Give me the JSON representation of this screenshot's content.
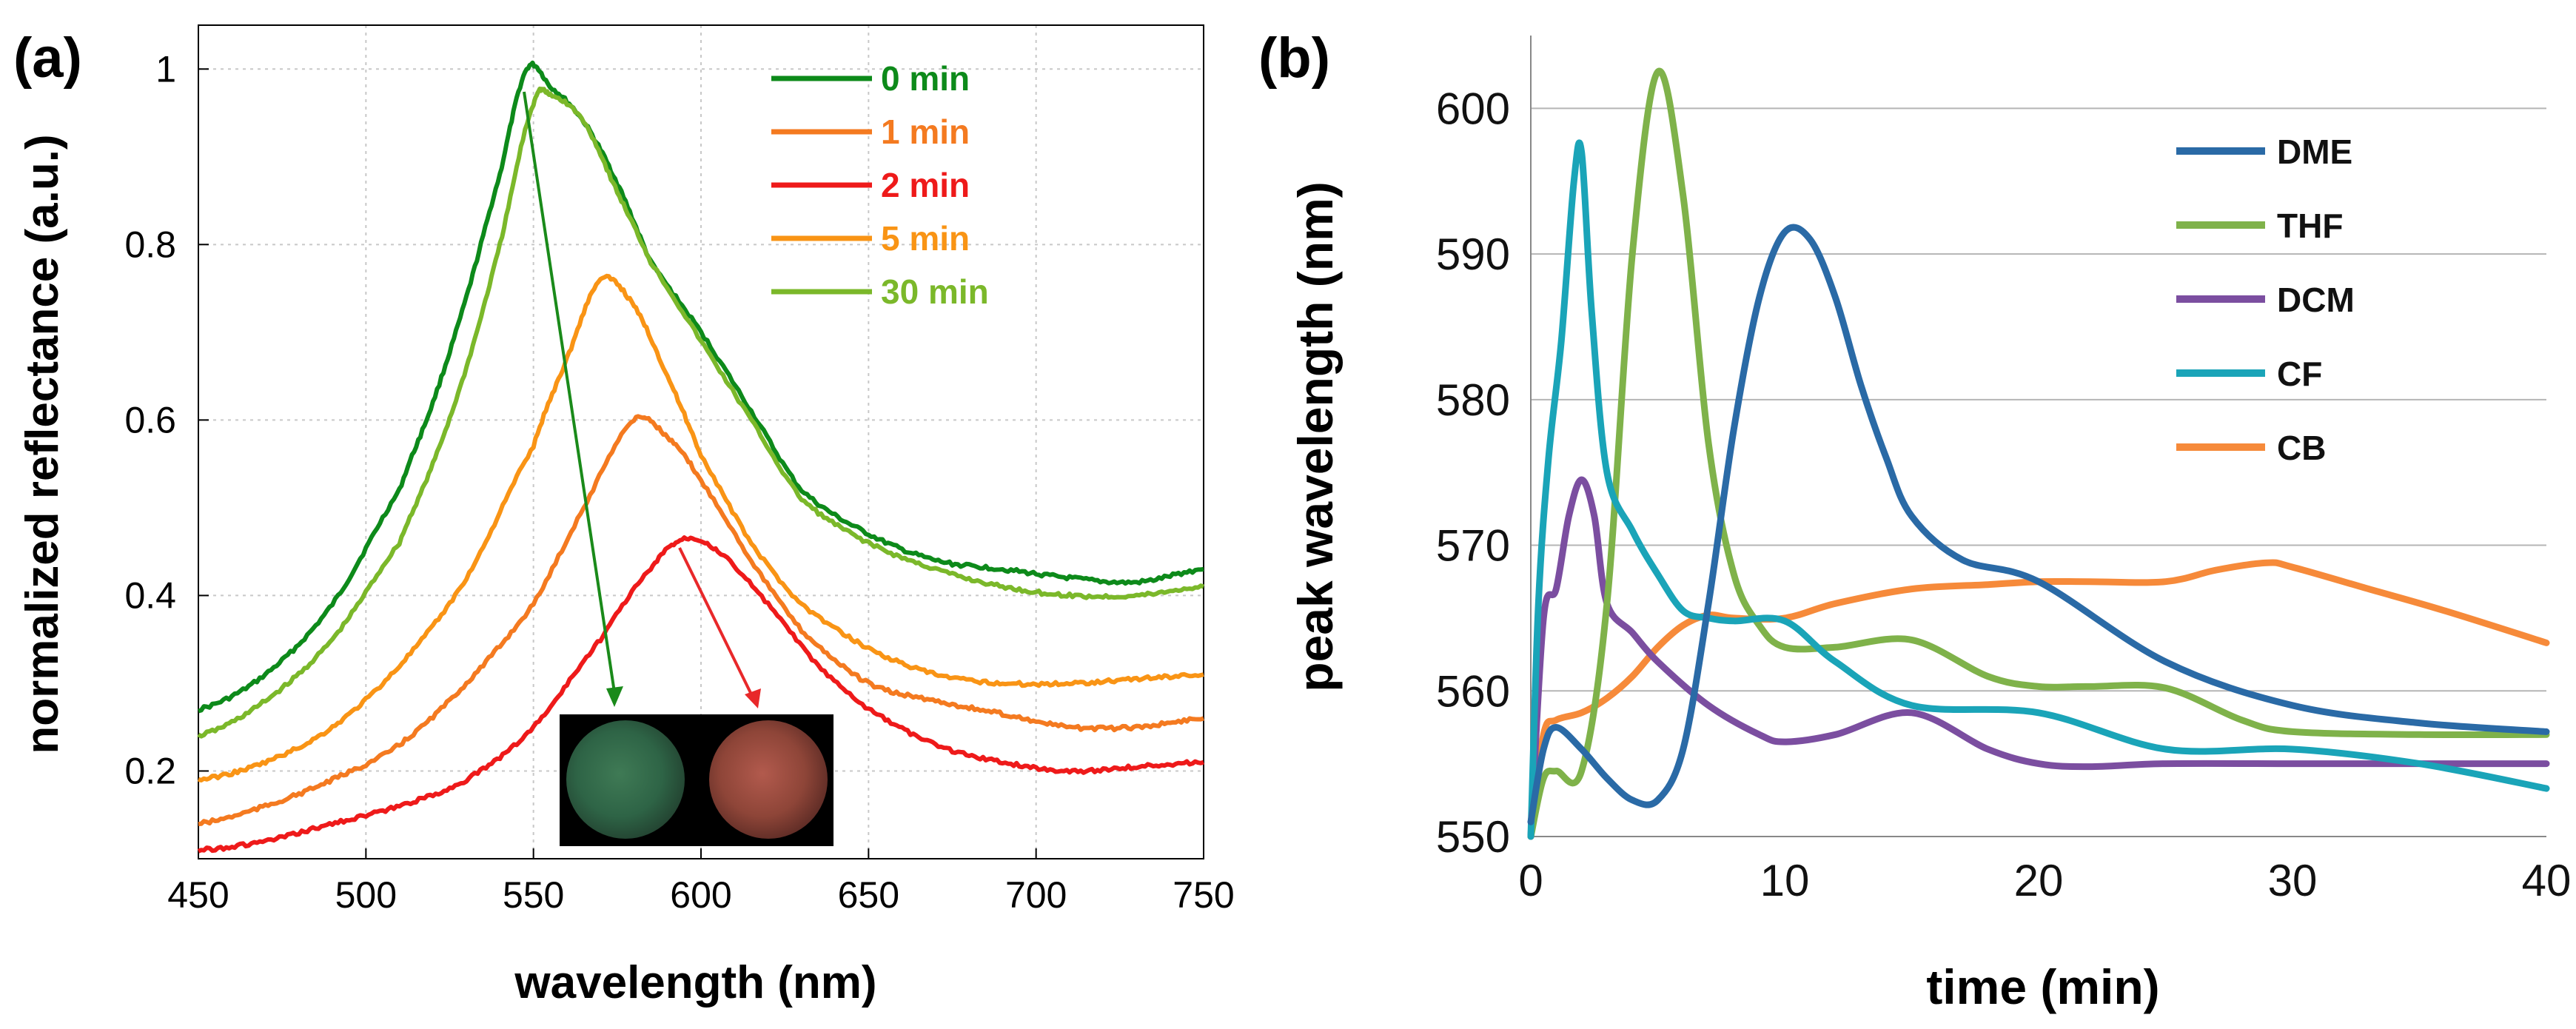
{
  "colors": {
    "0 min": "#0d8a1a",
    "1 min": "#f47a20",
    "2 min": "#ee1a1a",
    "5 min": "#f99415",
    "30 min": "#7bb82a",
    "DME": "#2a6aa6",
    "THF": "#7fb24a",
    "DCM": "#7b4ea0",
    "CF": "#1aa4b8",
    "CB": "#f68a3a"
  },
  "chart_data": [
    {
      "type": "line",
      "panel_label": "(a)",
      "title": "",
      "xlabel": "wavelength (nm)",
      "ylabel": "normalized reflectance (a.u.)",
      "xlim": [
        450,
        750
      ],
      "ylim": [
        0.1,
        1.05
      ],
      "xticks": [
        450,
        500,
        550,
        600,
        650,
        700,
        750
      ],
      "xtick_labels": [
        "450",
        "500",
        "550",
        "600",
        "650",
        "700",
        "750"
      ],
      "yticks": [
        0.2,
        0.4,
        0.6,
        0.8,
        1
      ],
      "ytick_labels": [
        "0.2",
        "0.4",
        "0.6",
        "0.8",
        "1"
      ],
      "grid": true,
      "legend": "top-right",
      "annotations": [
        "arrow from 0 min peak toward green inset photo",
        "arrow from 2 min peak toward red inset photo",
        "inset: photographs of green and red film discs"
      ],
      "series": [
        {
          "name": "0 min",
          "x": [
            450,
            470,
            490,
            510,
            520,
            530,
            540,
            548,
            555,
            565,
            575,
            585,
            600,
            615,
            630,
            650,
            670,
            690,
            710,
            730,
            750
          ],
          "values": [
            0.27,
            0.31,
            0.39,
            0.52,
            0.62,
            0.74,
            0.88,
            1.0,
            0.98,
            0.94,
            0.87,
            0.78,
            0.7,
            0.61,
            0.52,
            0.47,
            0.44,
            0.43,
            0.42,
            0.415,
            0.43
          ]
        },
        {
          "name": "30 min",
          "x": [
            450,
            470,
            490,
            510,
            520,
            530,
            540,
            550,
            555,
            565,
            575,
            585,
            600,
            615,
            630,
            650,
            670,
            690,
            710,
            730,
            750
          ],
          "values": [
            0.24,
            0.28,
            0.35,
            0.46,
            0.55,
            0.66,
            0.8,
            0.96,
            0.97,
            0.94,
            0.86,
            0.78,
            0.69,
            0.6,
            0.51,
            0.46,
            0.43,
            0.41,
            0.4,
            0.4,
            0.41
          ]
        },
        {
          "name": "5 min",
          "x": [
            450,
            470,
            490,
            510,
            530,
            550,
            560,
            570,
            580,
            590,
            600,
            615,
            630,
            650,
            670,
            690,
            710,
            730,
            750
          ],
          "values": [
            0.19,
            0.21,
            0.25,
            0.32,
            0.42,
            0.57,
            0.67,
            0.76,
            0.73,
            0.65,
            0.56,
            0.46,
            0.39,
            0.34,
            0.31,
            0.3,
            0.3,
            0.305,
            0.31
          ]
        },
        {
          "name": "1 min",
          "x": [
            450,
            470,
            490,
            510,
            530,
            550,
            565,
            580,
            590,
            600,
            615,
            630,
            650,
            670,
            690,
            710,
            730,
            750
          ],
          "values": [
            0.14,
            0.16,
            0.19,
            0.23,
            0.3,
            0.39,
            0.5,
            0.6,
            0.58,
            0.53,
            0.44,
            0.36,
            0.3,
            0.28,
            0.265,
            0.25,
            0.25,
            0.26
          ]
        },
        {
          "name": "2 min",
          "x": [
            450,
            470,
            490,
            510,
            530,
            550,
            570,
            585,
            595,
            605,
            620,
            635,
            650,
            670,
            690,
            710,
            730,
            750
          ],
          "values": [
            0.11,
            0.12,
            0.14,
            0.16,
            0.19,
            0.25,
            0.35,
            0.43,
            0.465,
            0.45,
            0.39,
            0.32,
            0.27,
            0.23,
            0.21,
            0.2,
            0.205,
            0.21
          ]
        }
      ]
    },
    {
      "type": "line",
      "panel_label": "(b)",
      "title": "",
      "xlabel": "time (min)",
      "ylabel": "peak wavelength (nm)",
      "xlim": [
        0,
        40
      ],
      "ylim": [
        550,
        605
      ],
      "xticks": [
        0,
        10,
        20,
        30,
        40
      ],
      "xtick_labels": [
        "0",
        "10",
        "20",
        "30",
        "40"
      ],
      "yticks": [
        550,
        560,
        570,
        580,
        590,
        600
      ],
      "ytick_labels": [
        "550",
        "560",
        "570",
        "580",
        "590",
        "600"
      ],
      "grid": true,
      "legend": "top-right",
      "series": [
        {
          "name": "DME",
          "x": [
            0,
            0.5,
            1,
            2,
            3,
            4,
            5,
            6,
            7,
            8,
            9,
            10,
            11,
            12,
            13,
            14,
            15,
            17,
            20,
            25,
            30,
            35,
            40
          ],
          "values": [
            551,
            556,
            557.5,
            556,
            554,
            552.5,
            552.5,
            556,
            566,
            578,
            587,
            591.5,
            591,
            587,
            581,
            576,
            572,
            569,
            567.5,
            562,
            559,
            557.8,
            557.2
          ]
        },
        {
          "name": "THF",
          "x": [
            0,
            0.5,
            1,
            2,
            3,
            4,
            5,
            6,
            7,
            8,
            9,
            10,
            12,
            15,
            18,
            20,
            22,
            25,
            28,
            30,
            35,
            40
          ],
          "values": [
            550,
            554,
            554.5,
            554.5,
            566,
            590,
            602.5,
            594,
            577,
            568,
            564.5,
            563,
            563,
            563.5,
            561,
            560.3,
            560.3,
            560.2,
            558,
            557.2,
            557,
            557
          ]
        },
        {
          "name": "DCM",
          "x": [
            0,
            0.5,
            1,
            1.5,
            2,
            2.5,
            3,
            4,
            5,
            7,
            9,
            10,
            12,
            15,
            18,
            20,
            22,
            25,
            30,
            35,
            40
          ],
          "values": [
            550,
            565,
            567,
            572,
            574.5,
            572,
            566,
            564,
            562,
            559,
            557,
            556.5,
            557,
            558.5,
            556,
            555,
            554.8,
            555,
            555,
            555,
            555
          ]
        },
        {
          "name": "CF",
          "x": [
            0,
            0.3,
            0.7,
            1.2,
            1.7,
            2,
            2.4,
            3,
            4,
            5,
            6,
            7,
            8,
            10,
            12,
            15,
            20,
            25,
            30,
            35,
            40
          ],
          "values": [
            550,
            566,
            576,
            584,
            595,
            597,
            586,
            575,
            571,
            568,
            565.5,
            565,
            564.8,
            564.8,
            562,
            559,
            558.5,
            556,
            556,
            555,
            553.3
          ]
        },
        {
          "name": "CB",
          "x": [
            0,
            0.5,
            1,
            2,
            3,
            4,
            5,
            6,
            7,
            8,
            10,
            12,
            15,
            18,
            20,
            22,
            25,
            27,
            29,
            30,
            33,
            36,
            40
          ],
          "values": [
            550,
            557,
            558,
            558.5,
            559.5,
            561,
            563,
            564.5,
            565.2,
            565,
            565,
            566,
            567,
            567.3,
            567.5,
            567.5,
            567.5,
            568.3,
            568.8,
            568.5,
            567,
            565.5,
            563.3
          ]
        }
      ]
    }
  ]
}
